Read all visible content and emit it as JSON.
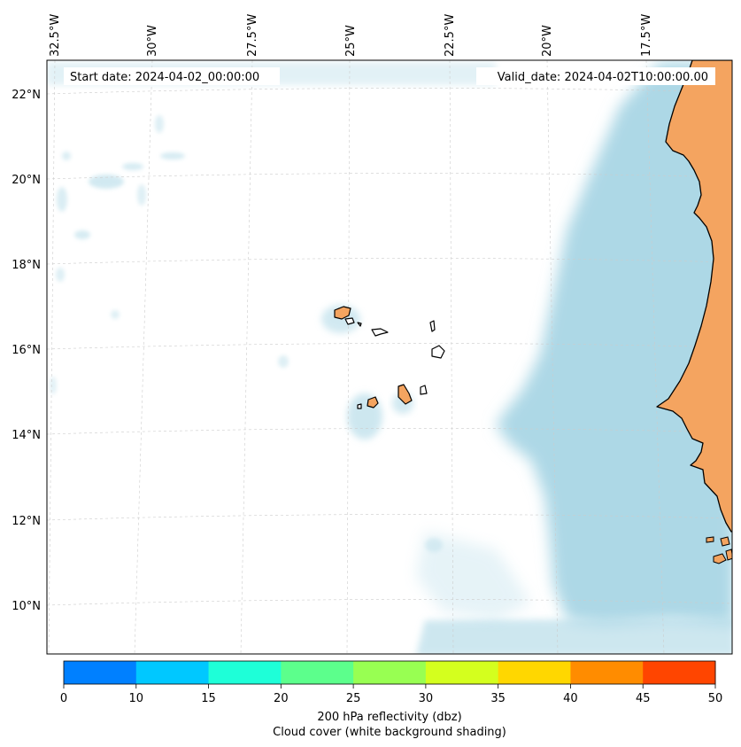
{
  "header": {
    "start_date": "Start date: 2024-04-02_00:00:00",
    "valid_date": "Valid_date: 2024-04-02T10:00:00.00"
  },
  "map": {
    "lon_labels": [
      "32.5°W",
      "30°W",
      "27.5°W",
      "25°W",
      "22.5°W",
      "20°W",
      "17.5°W"
    ],
    "lat_labels": [
      "22°N",
      "20°N",
      "18°N",
      "16°N",
      "14°N",
      "12°N",
      "10°N"
    ],
    "colors": {
      "ocean": "#ffffff",
      "land": "#f4a460",
      "cloud": "#add8e6",
      "coastline": "#000000",
      "gridline": "#cccccc"
    }
  },
  "colorbar": {
    "ticks": [
      "0",
      "10",
      "15",
      "20",
      "25",
      "30",
      "35",
      "40",
      "45",
      "50"
    ],
    "colors": [
      "#0080ff",
      "#00c8ff",
      "#1effd8",
      "#5cff8c",
      "#98ff52",
      "#d4ff1e",
      "#ffd700",
      "#ff8c00",
      "#ff4500"
    ],
    "label_line1": "200 hPa reflectivity (dbz)",
    "label_line2": "Cloud cover (white background shading)"
  }
}
